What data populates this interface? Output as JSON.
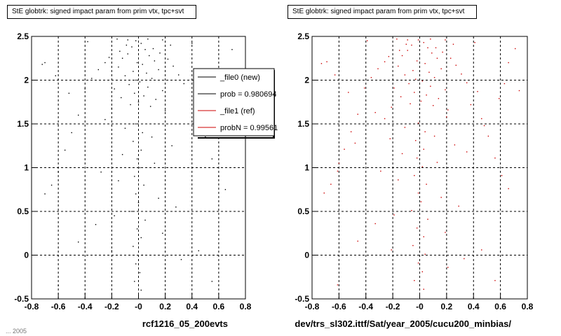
{
  "window": {
    "footer": "... 2005"
  },
  "chart_data": [
    {
      "type": "scatter",
      "title": "StE globtrk: signed impact param from prim vtx, tpc+svt",
      "xlabel": "rcf1216_05_200evts",
      "ylabel": "",
      "xlim": [
        -0.8,
        0.8
      ],
      "ylim": [
        -0.5,
        2.5
      ],
      "xticks": [
        "-0.8",
        "-0.6",
        "-0.4",
        "-0.2",
        "-0",
        "0.2",
        "0.4",
        "0.6",
        "0.8"
      ],
      "yticks": [
        "-0.5",
        "0",
        "0.5",
        "1",
        "1.5",
        "2",
        "2.5"
      ],
      "grid": true,
      "legend": {
        "placement": "top-right",
        "entries": [
          {
            "label": "_file0 (new)",
            "color": "#000000"
          },
          {
            "label": "prob = 0.980694",
            "color": "#000000"
          },
          {
            "label": "_file1 (ref)",
            "color": "#cc0000"
          },
          {
            "label": "probN = 0.99561",
            "color": "#cc0000"
          }
        ]
      },
      "series": [
        {
          "color": "#000000",
          "points": [
            [
              -0.02,
              2.45
            ],
            [
              0.02,
              2.42
            ],
            [
              -0.05,
              2.38
            ],
            [
              0.05,
              2.35
            ],
            [
              -0.08,
              2.3
            ],
            [
              0.08,
              2.28
            ],
            [
              -0.12,
              2.25
            ],
            [
              0.12,
              2.22
            ],
            [
              -0.01,
              2.2
            ],
            [
              0.03,
              2.18
            ],
            [
              -0.15,
              2.15
            ],
            [
              0.15,
              2.12
            ],
            [
              -0.04,
              2.1
            ],
            [
              0.06,
              2.08
            ],
            [
              -0.1,
              2.05
            ],
            [
              0.1,
              2.02
            ],
            [
              -0.02,
              2.0
            ],
            [
              0.01,
              1.98
            ],
            [
              -0.07,
              1.95
            ],
            [
              0.07,
              1.92
            ],
            [
              -0.18,
              1.9
            ],
            [
              0.18,
              1.88
            ],
            [
              -0.03,
              1.85
            ],
            [
              0.04,
              1.82
            ],
            [
              -0.13,
              1.8
            ],
            [
              0.13,
              1.78
            ],
            [
              0.0,
              1.75
            ],
            [
              -0.06,
              1.72
            ],
            [
              0.09,
              1.7
            ],
            [
              -0.2,
              1.68
            ],
            [
              0.2,
              1.65
            ],
            [
              -0.09,
              2.4
            ],
            [
              0.11,
              2.36
            ],
            [
              -0.14,
              2.33
            ],
            [
              0.16,
              2.31
            ],
            [
              -0.22,
              2.26
            ],
            [
              0.22,
              2.24
            ],
            [
              -0.25,
              2.2
            ],
            [
              0.26,
              2.16
            ],
            [
              -0.3,
              2.12
            ],
            [
              0.3,
              2.06
            ],
            [
              -0.35,
              2.02
            ],
            [
              0.34,
              1.96
            ],
            [
              -0.4,
              1.9
            ],
            [
              0.42,
              1.86
            ],
            [
              -0.45,
              1.6
            ],
            [
              0.45,
              1.55
            ],
            [
              -0.5,
              1.4
            ],
            [
              0.5,
              1.35
            ],
            [
              -0.55,
              1.2
            ],
            [
              0.55,
              1.1
            ],
            [
              -0.6,
              0.95
            ],
            [
              0.6,
              0.9
            ],
            [
              -0.65,
              0.8
            ],
            [
              0.65,
              0.75
            ],
            [
              -0.7,
              0.7
            ],
            [
              0.7,
              2.35
            ],
            [
              -0.72,
              2.18
            ],
            [
              0.4,
              2.42
            ],
            [
              -0.38,
              2.44
            ],
            [
              -0.02,
              1.5
            ],
            [
              0.03,
              1.4
            ],
            [
              -0.04,
              1.3
            ],
            [
              0.02,
              1.2
            ],
            [
              -0.01,
              1.1
            ],
            [
              0.01,
              1.0
            ],
            [
              -0.03,
              0.9
            ],
            [
              0.04,
              0.8
            ],
            [
              -0.02,
              0.7
            ],
            [
              0.0,
              0.6
            ],
            [
              -0.05,
              0.5
            ],
            [
              0.05,
              0.4
            ],
            [
              -0.01,
              0.3
            ],
            [
              0.02,
              0.2
            ],
            [
              -0.04,
              0.1
            ],
            [
              0.03,
              0.0
            ],
            [
              -0.02,
              -0.1
            ],
            [
              0.01,
              -0.2
            ],
            [
              -0.03,
              -0.3
            ],
            [
              0.02,
              -0.4
            ],
            [
              -0.1,
              1.45
            ],
            [
              0.1,
              1.35
            ],
            [
              -0.12,
              1.15
            ],
            [
              0.12,
              1.05
            ],
            [
              -0.15,
              0.85
            ],
            [
              0.15,
              0.65
            ],
            [
              -0.18,
              0.45
            ],
            [
              0.18,
              0.25
            ],
            [
              -0.2,
              0.05
            ],
            [
              0.2,
              -0.15
            ],
            [
              -0.25,
              1.55
            ],
            [
              0.25,
              1.25
            ],
            [
              -0.28,
              0.95
            ],
            [
              0.28,
              0.55
            ],
            [
              -0.32,
              0.35
            ],
            [
              0.32,
              -0.05
            ],
            [
              -0.6,
              -0.35
            ],
            [
              0.55,
              -0.3
            ],
            [
              -0.45,
              0.15
            ],
            [
              0.45,
              0.05
            ],
            [
              -0.7,
              2.2
            ],
            [
              -0.62,
              2.05
            ],
            [
              0.62,
              1.95
            ],
            [
              -0.52,
              1.85
            ],
            [
              0.58,
              1.78
            ],
            [
              -0.16,
              2.47
            ],
            [
              0.18,
              2.46
            ],
            [
              0.07,
              2.47
            ],
            [
              -0.08,
              2.46
            ],
            [
              0.24,
              2.4
            ]
          ]
        }
      ]
    },
    {
      "type": "scatter",
      "title": "StE globtrk: signed impact param from prim vtx, tpc+svt",
      "xlabel": "dev/trs_sl302.ittf/Sat/year_2005/cucu200_minbias/",
      "ylabel": "",
      "xlim": [
        -0.8,
        0.8
      ],
      "ylim": [
        -0.5,
        2.5
      ],
      "xticks": [
        "-0.8",
        "-0.6",
        "-0.4",
        "-0.2",
        "-0",
        "0.2",
        "0.4",
        "0.6",
        "0.8"
      ],
      "yticks": [
        "-0.5",
        "0",
        "0.5",
        "1",
        "1.5",
        "2",
        "2.5"
      ],
      "grid": true,
      "series": [
        {
          "color": "#cc0000",
          "points": [
            [
              -0.01,
              2.46
            ],
            [
              0.03,
              2.43
            ],
            [
              -0.06,
              2.4
            ],
            [
              0.06,
              2.37
            ],
            [
              -0.09,
              2.34
            ],
            [
              0.09,
              2.31
            ],
            [
              -0.13,
              2.28
            ],
            [
              0.13,
              2.25
            ],
            [
              -0.02,
              2.22
            ],
            [
              0.04,
              2.19
            ],
            [
              -0.16,
              2.16
            ],
            [
              0.16,
              2.13
            ],
            [
              -0.05,
              2.11
            ],
            [
              0.07,
              2.09
            ],
            [
              -0.11,
              2.06
            ],
            [
              0.11,
              2.03
            ],
            [
              -0.03,
              2.01
            ],
            [
              0.02,
              1.99
            ],
            [
              -0.08,
              1.96
            ],
            [
              0.08,
              1.93
            ],
            [
              -0.19,
              1.91
            ],
            [
              0.19,
              1.89
            ],
            [
              -0.04,
              1.86
            ],
            [
              0.05,
              1.83
            ],
            [
              -0.14,
              1.81
            ],
            [
              0.14,
              1.79
            ],
            [
              0.01,
              1.76
            ],
            [
              -0.07,
              1.73
            ],
            [
              0.1,
              1.71
            ],
            [
              -0.21,
              1.69
            ],
            [
              0.21,
              1.66
            ],
            [
              -0.1,
              2.41
            ],
            [
              0.12,
              2.37
            ],
            [
              -0.15,
              2.34
            ],
            [
              0.17,
              2.32
            ],
            [
              -0.23,
              2.27
            ],
            [
              0.23,
              2.25
            ],
            [
              -0.26,
              2.21
            ],
            [
              0.27,
              2.17
            ],
            [
              -0.31,
              2.13
            ],
            [
              0.31,
              2.07
            ],
            [
              -0.36,
              2.03
            ],
            [
              0.35,
              1.97
            ],
            [
              -0.41,
              1.91
            ],
            [
              0.43,
              1.87
            ],
            [
              -0.46,
              1.61
            ],
            [
              0.46,
              1.56
            ],
            [
              -0.51,
              1.41
            ],
            [
              0.51,
              1.36
            ],
            [
              -0.56,
              1.21
            ],
            [
              0.56,
              1.11
            ],
            [
              -0.61,
              0.96
            ],
            [
              0.61,
              0.91
            ],
            [
              -0.66,
              0.81
            ],
            [
              0.66,
              0.76
            ],
            [
              -0.71,
              0.71
            ],
            [
              0.71,
              2.36
            ],
            [
              -0.73,
              2.19
            ],
            [
              0.41,
              2.43
            ],
            [
              -0.39,
              2.45
            ],
            [
              -0.01,
              1.51
            ],
            [
              0.04,
              1.41
            ],
            [
              -0.03,
              1.31
            ],
            [
              0.03,
              1.21
            ],
            [
              -0.02,
              1.11
            ],
            [
              0.02,
              1.01
            ],
            [
              -0.04,
              0.91
            ],
            [
              0.05,
              0.81
            ],
            [
              -0.01,
              0.71
            ],
            [
              0.01,
              0.61
            ],
            [
              -0.06,
              0.51
            ],
            [
              0.06,
              0.41
            ],
            [
              -0.02,
              0.31
            ],
            [
              0.03,
              0.21
            ],
            [
              -0.05,
              0.11
            ],
            [
              0.04,
              0.01
            ],
            [
              -0.01,
              -0.09
            ],
            [
              0.02,
              -0.19
            ],
            [
              -0.04,
              -0.29
            ],
            [
              0.03,
              -0.39
            ],
            [
              -0.11,
              1.46
            ],
            [
              0.11,
              1.36
            ],
            [
              -0.13,
              1.16
            ],
            [
              0.13,
              1.06
            ],
            [
              -0.16,
              0.86
            ],
            [
              0.16,
              0.66
            ],
            [
              -0.19,
              0.46
            ],
            [
              0.19,
              0.26
            ],
            [
              -0.21,
              0.06
            ],
            [
              0.21,
              -0.14
            ],
            [
              -0.26,
              1.56
            ],
            [
              0.26,
              1.26
            ],
            [
              -0.29,
              0.96
            ],
            [
              0.29,
              0.56
            ],
            [
              -0.33,
              0.36
            ],
            [
              0.33,
              -0.04
            ],
            [
              -0.61,
              -0.34
            ],
            [
              0.56,
              -0.29
            ],
            [
              -0.46,
              0.16
            ],
            [
              0.46,
              0.06
            ],
            [
              -0.69,
              2.21
            ],
            [
              -0.63,
              2.06
            ],
            [
              0.63,
              1.96
            ],
            [
              -0.53,
              1.86
            ],
            [
              0.59,
              1.79
            ],
            [
              -0.17,
              2.47
            ],
            [
              0.19,
              2.46
            ],
            [
              0.08,
              2.47
            ],
            [
              -0.09,
              2.46
            ],
            [
              0.25,
              2.41
            ],
            [
              0.74,
              1.88
            ],
            [
              0.66,
              2.2
            ],
            [
              0.38,
              1.72
            ],
            [
              -0.33,
              1.63
            ],
            [
              0.48,
              1.48
            ],
            [
              -0.48,
              1.28
            ],
            [
              0.2,
              1.58
            ],
            [
              -0.22,
              1.33
            ],
            [
              0.35,
              1.18
            ],
            [
              -0.6,
              1.05
            ]
          ]
        }
      ]
    }
  ]
}
